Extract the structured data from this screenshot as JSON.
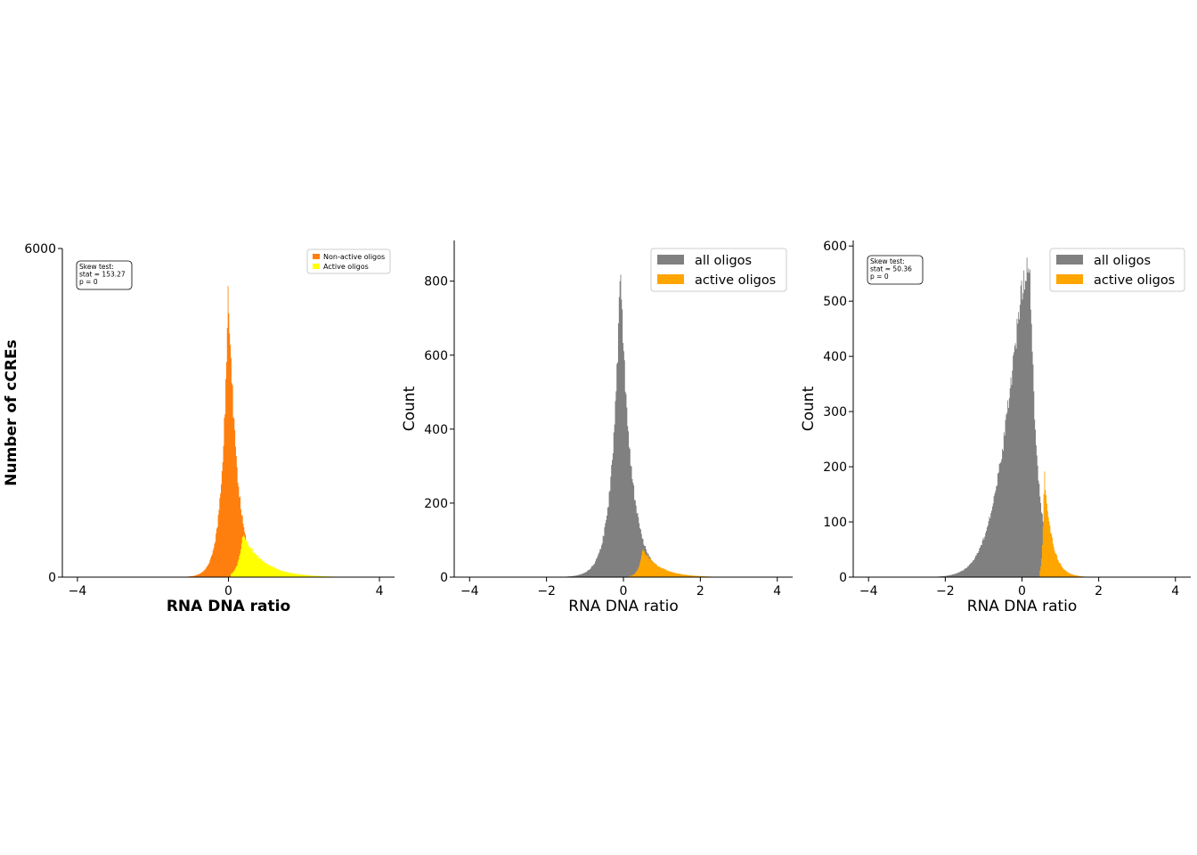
{
  "colors": {
    "non_active": "#ff7f0e",
    "active_yellow": "#ffff00",
    "all_grey": "#808080",
    "active_orange": "#ffa500",
    "axis": "#000000"
  },
  "chart_data": [
    {
      "type": "histogram",
      "xlabel": "RNA DNA ratio",
      "ylabel": "Number of cCREs",
      "xlim": [
        -4.4,
        4.4
      ],
      "ylim": [
        0,
        6000
      ],
      "xticks": [
        -4,
        0,
        4
      ],
      "yticks": [
        0,
        6000
      ],
      "xtick_labels": [
        "−4",
        "0",
        "4"
      ],
      "ytick_labels": [
        "0",
        "6000"
      ],
      "legend": {
        "placement": "top-right",
        "entries": [
          {
            "label": "Non-active oligos",
            "series": 0
          },
          {
            "label": "Active oligos",
            "series": 1
          }
        ]
      },
      "annotation": {
        "lines": [
          "Skew test:",
          "stat = 153.27",
          "p = 0"
        ],
        "placement": "top-left"
      },
      "series": [
        {
          "name": "Non-active oligos",
          "color_key": "non_active",
          "shape": {
            "kind": "laplace",
            "peak": 5350,
            "center": 0.0,
            "scale_left": 0.17,
            "scale_right": 0.23,
            "min_x": -1.8,
            "max_x": 2.8
          }
        },
        {
          "name": "Active oligos",
          "color_key": "active_yellow",
          "shape": {
            "kind": "skewed",
            "peak": 780,
            "center": 0.38,
            "scale_left": 0.12,
            "scale_right": 0.55,
            "min_x": 0.05,
            "max_x": 2.9
          }
        }
      ]
    },
    {
      "type": "histogram",
      "xlabel": "RNA DNA ratio",
      "ylabel": "Count",
      "xlim": [
        -4.4,
        4.4
      ],
      "ylim": [
        0,
        910
      ],
      "xticks": [
        -4,
        -2,
        0,
        2,
        4
      ],
      "yticks": [
        0,
        200,
        400,
        600,
        800
      ],
      "xtick_labels": [
        "−4",
        "−2",
        "0",
        "2",
        "4"
      ],
      "ytick_labels": [
        "0",
        "200",
        "400",
        "600",
        "800"
      ],
      "legend": {
        "placement": "top-right",
        "entries": [
          {
            "label": "all oligos",
            "series": 0
          },
          {
            "label": "active oligos",
            "series": 1
          }
        ]
      },
      "series": [
        {
          "name": "all oligos",
          "color_key": "all_grey",
          "shape": {
            "kind": "laplace",
            "peak": 820,
            "center": -0.08,
            "scale_left": 0.22,
            "scale_right": 0.28,
            "min_x": -2.4,
            "max_x": 2.9
          }
        },
        {
          "name": "active oligos",
          "color_key": "active_orange",
          "shape": {
            "kind": "skewed",
            "peak": 75,
            "center": 0.5,
            "scale_left": 0.1,
            "scale_right": 0.45,
            "min_x": 0.1,
            "max_x": 2.4
          }
        }
      ]
    },
    {
      "type": "histogram",
      "xlabel": "RNA DNA ratio",
      "ylabel": "Count",
      "xlim": [
        -4.4,
        4.4
      ],
      "ylim": [
        0,
        610
      ],
      "xticks": [
        -4,
        -2,
        0,
        2,
        4
      ],
      "yticks": [
        0,
        100,
        200,
        300,
        400,
        500,
        600
      ],
      "xtick_labels": [
        "−4",
        "−2",
        "0",
        "2",
        "4"
      ],
      "ytick_labels": [
        "0",
        "100",
        "200",
        "300",
        "400",
        "500",
        "600"
      ],
      "legend": {
        "placement": "top-right",
        "entries": [
          {
            "label": "all oligos",
            "series": 0
          },
          {
            "label": "active oligos",
            "series": 1
          }
        ]
      },
      "annotation": {
        "lines": [
          "Skew test:",
          "stat = 50.36",
          "p = 0"
        ],
        "placement": "top-left"
      },
      "series": [
        {
          "name": "all oligos",
          "color_key": "all_grey",
          "shape": {
            "kind": "left_skewed",
            "peak": 580,
            "center": 0.2,
            "scale_left": 0.75,
            "scale_right": 0.2,
            "min_x": -2.2,
            "max_x": 2.0
          }
        },
        {
          "name": "active oligos",
          "color_key": "active_orange",
          "shape": {
            "kind": "skewed",
            "peak": 195,
            "center": 0.58,
            "scale_left": 0.04,
            "scale_right": 0.2,
            "min_x": 0.45,
            "max_x": 1.7
          }
        }
      ]
    }
  ]
}
